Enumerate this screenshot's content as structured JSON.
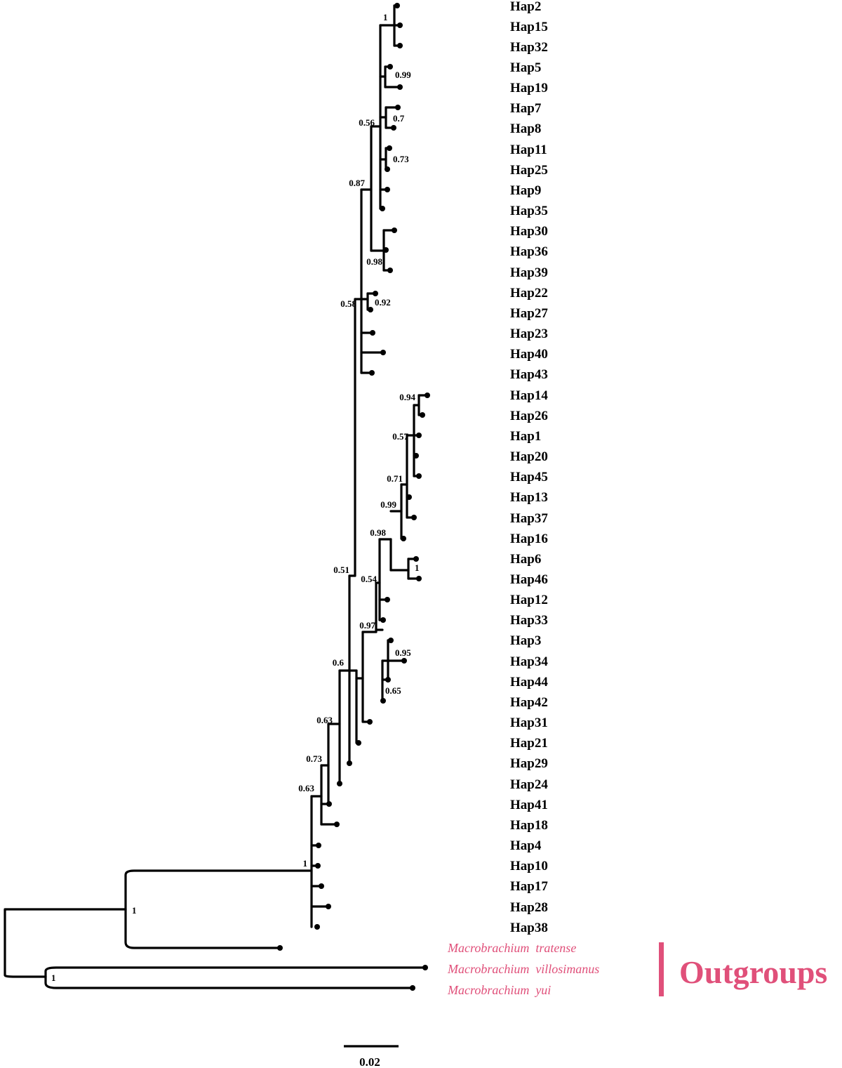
{
  "tips": [
    "Hap2",
    "Hap15",
    "Hap32",
    "Hap5",
    "Hap19",
    "Hap7",
    "Hap8",
    "Hap11",
    "Hap25",
    "Hap9",
    "Hap35",
    "Hap30",
    "Hap36",
    "Hap39",
    "Hap22",
    "Hap27",
    "Hap23",
    "Hap40",
    "Hap43",
    "Hap14",
    "Hap26",
    "Hap1",
    "Hap20",
    "Hap45",
    "Hap13",
    "Hap37",
    "Hap16",
    "Hap6",
    "Hap46",
    "Hap12",
    "Hap33",
    "Hap3",
    "Hap34",
    "Hap44",
    "Hap42",
    "Hap31",
    "Hap21",
    "Hap29",
    "Hap24",
    "Hap41",
    "Hap18",
    "Hap4",
    "Hap10",
    "Hap17",
    "Hap28",
    "Hap38"
  ],
  "outgroups": {
    "species": [
      "Macrobrachium  tratense",
      "Macrobrachium  villosimanus",
      "Macrobrachium  yui"
    ],
    "title": "Outgroups",
    "color": "#e0507a"
  },
  "support_values": [
    "1",
    "0.99",
    "0.7",
    "0.56",
    "0.73",
    "0.87",
    "0.98",
    "0.58",
    "0.92",
    "0.94",
    "0.57",
    "0.71",
    "0.99",
    "0.98",
    "1",
    "0.51",
    "0.54",
    "0.97",
    "0.95",
    "0.65",
    "0.6",
    "0.63",
    "0.73",
    "0.63",
    "1",
    "1",
    "1"
  ],
  "scale_bar": {
    "label": "0.02"
  }
}
